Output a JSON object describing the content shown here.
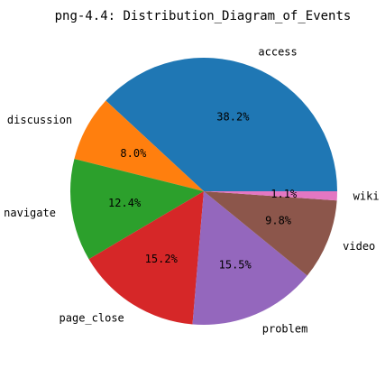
{
  "chart_data": {
    "type": "pie",
    "title": "png-4.4: Distribution_Diagram_of_Events",
    "start_angle": 0,
    "direction": "counterclockwise",
    "slices": [
      {
        "label": "access",
        "percent": 38.2,
        "percent_label": "38.2%",
        "color": "#1f77b4"
      },
      {
        "label": "discussion",
        "percent": 8.0,
        "percent_label": "8.0%",
        "color": "#ff7f0e"
      },
      {
        "label": "navigate",
        "percent": 12.4,
        "percent_label": "12.4%",
        "color": "#2ca02c"
      },
      {
        "label": "page_close",
        "percent": 15.2,
        "percent_label": "15.2%",
        "color": "#d62728"
      },
      {
        "label": "problem",
        "percent": 15.5,
        "percent_label": "15.5%",
        "color": "#9467bd"
      },
      {
        "label": "video",
        "percent": 9.8,
        "percent_label": "9.8%",
        "color": "#8c564b"
      },
      {
        "label": "wiki",
        "percent": 1.1,
        "percent_label": "1.1%",
        "color": "#e377c2"
      }
    ]
  }
}
